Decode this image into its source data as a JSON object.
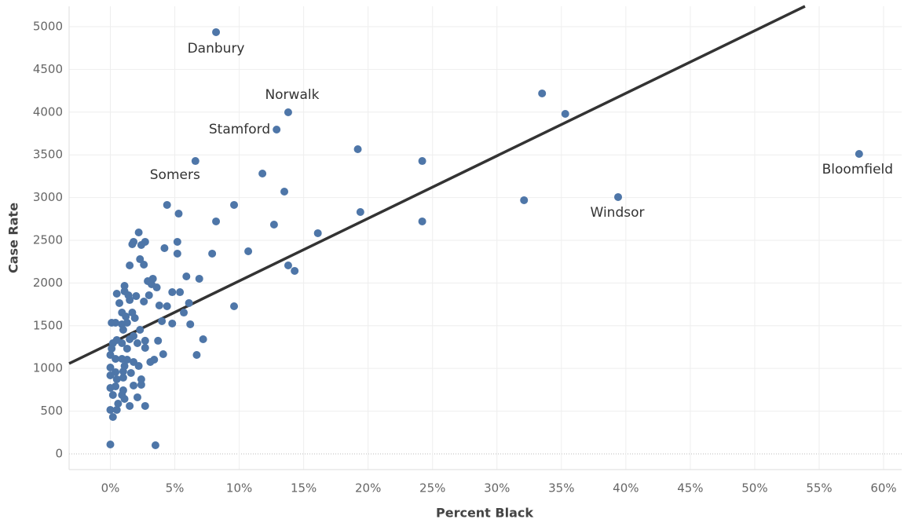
{
  "chart_data": {
    "type": "scatter",
    "x_label": "Percent Black",
    "y_label": "Case Rate",
    "xlim": [
      -3.2,
      61.4
    ],
    "ylim": [
      -184,
      5239
    ],
    "xticks": [
      {
        "value": 0,
        "label": "0%"
      },
      {
        "value": 5,
        "label": "5%"
      },
      {
        "value": 10,
        "label": "10%"
      },
      {
        "value": 15,
        "label": "15%"
      },
      {
        "value": 20,
        "label": "20%"
      },
      {
        "value": 25,
        "label": "25%"
      },
      {
        "value": 30,
        "label": "30%"
      },
      {
        "value": 35,
        "label": "35%"
      },
      {
        "value": 40,
        "label": "40%"
      },
      {
        "value": 45,
        "label": "45%"
      },
      {
        "value": 50,
        "label": "50%"
      },
      {
        "value": 55,
        "label": "55%"
      },
      {
        "value": 60,
        "label": "60%"
      }
    ],
    "yticks": [
      0,
      500,
      1000,
      1500,
      2000,
      2500,
      3000,
      3500,
      4000,
      4500,
      5000
    ],
    "grid": true,
    "color": "#4e76a8",
    "trendline": {
      "color": "#333333",
      "x": [
        -3.2,
        53.9
      ],
      "y": [
        1057,
        5239
      ]
    },
    "x": [
      8.2,
      13.8,
      12.9,
      6.6,
      58.1,
      39.4,
      33.5,
      35.3,
      19.2,
      24.2,
      11.8,
      13.5,
      32.1,
      19.4,
      24.2,
      9.6,
      4.4,
      5.3,
      8.2,
      12.7,
      16.1,
      10.7,
      7.9,
      13.8,
      14.3,
      9.6,
      6.9,
      5.9,
      5.2,
      4.2,
      5.2,
      6.1,
      5.7,
      6.2,
      7.2,
      6.7,
      5.4,
      4.8,
      4.4,
      3.8,
      4.0,
      4.8,
      3.7,
      4.1,
      3.4,
      3.1,
      3.5,
      0.0,
      2.2,
      2.7,
      2.4,
      1.7,
      1.8,
      2.3,
      2.6,
      1.5,
      3.3,
      2.9,
      3.2,
      3.6,
      3.0,
      2.0,
      1.5,
      1.1,
      1.1,
      1.4,
      0.5,
      0.7,
      2.6,
      0.9,
      1.7,
      1.9,
      1.2,
      1.3,
      0.4,
      0.1,
      0.9,
      2.3,
      2.1,
      1.5,
      2.7,
      1.8,
      1.0,
      0.5,
      0.2,
      0.9,
      1.3,
      2.7,
      0.1,
      0.0,
      0.4,
      0.9,
      1.3,
      1.8,
      2.2,
      1.1,
      0.0,
      0.0,
      0.4,
      1.0,
      1.6,
      0.5,
      1.0,
      2.4,
      0.0,
      0.4,
      1.0,
      1.8,
      2.4,
      0.9,
      0.2,
      2.1,
      1.1,
      0.6,
      1.5,
      2.7,
      0.0,
      0.5,
      0.2
    ],
    "y": [
      4936,
      3998,
      3796,
      3428,
      3511,
      3006,
      4219,
      3980,
      3566,
      3428,
      3281,
      3070,
      2969,
      2831,
      2721,
      2914,
      2914,
      2812,
      2721,
      2684,
      2583,
      2371,
      2344,
      2206,
      2142,
      1728,
      2050,
      2077,
      2482,
      2408,
      2344,
      1765,
      1654,
      1517,
      1342,
      1158,
      1893,
      1893,
      1728,
      1737,
      1553,
      1526,
      1324,
      1167,
      1103,
      1075,
      101,
      110,
      2592,
      2482,
      2445,
      2454,
      2482,
      2279,
      2215,
      2206,
      2050,
      2022,
      1985,
      1948,
      1857,
      1847,
      1801,
      1967,
      1903,
      1857,
      1875,
      1765,
      1783,
      1654,
      1654,
      1590,
      1608,
      1535,
      1535,
      1535,
      1517,
      1452,
      1296,
      1342,
      1324,
      1379,
      1452,
      1333,
      1296,
      1296,
      1232,
      1241,
      1232,
      1158,
      1112,
      1112,
      1103,
      1075,
      1029,
      1029,
      1011,
      919,
      956,
      965,
      947,
      873,
      892,
      873,
      772,
      790,
      744,
      800,
      809,
      689,
      689,
      662,
      643,
      588,
      561,
      561,
      515,
      515,
      432
    ],
    "point_labels": [
      "Danbury",
      "Norwalk",
      "Stamford",
      "Somers",
      "Bloomfield",
      "Windsor",
      null,
      null,
      null,
      null,
      null,
      null,
      null,
      null,
      null,
      null,
      null,
      null,
      null,
      null,
      null,
      null,
      null,
      null,
      null,
      null,
      null,
      null,
      null,
      null,
      null,
      null,
      null,
      null,
      null,
      null,
      null,
      null,
      null,
      null,
      null,
      null,
      null,
      null,
      null,
      null,
      null,
      null,
      null,
      null,
      null,
      null,
      null,
      null,
      null,
      null,
      null,
      null,
      null,
      null,
      null,
      null,
      null,
      null,
      null,
      null,
      null,
      null,
      null,
      null,
      null,
      null,
      null,
      null,
      null,
      null,
      null,
      null,
      null,
      null,
      null,
      null,
      null,
      null,
      null,
      null,
      null,
      null,
      null,
      null,
      null,
      null,
      null,
      null,
      null,
      null,
      null,
      null,
      null,
      null,
      null,
      null,
      null,
      null,
      null,
      null,
      null,
      null,
      null,
      null,
      null,
      null,
      null,
      null,
      null,
      null,
      null,
      null,
      null
    ]
  }
}
